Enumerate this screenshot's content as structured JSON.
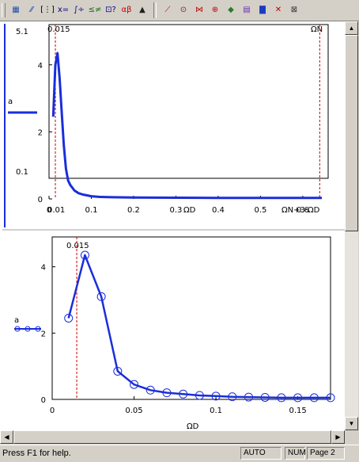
{
  "toolbar": {
    "buttons": [
      {
        "name": "calculator-toolbar-icon",
        "glyph": "▦",
        "color": "#1f4f9e"
      },
      {
        "name": "graph-toolbar-icon",
        "glyph": "⁄⁄",
        "color": "#1a3bbf"
      },
      {
        "name": "matrix-toolbar-icon",
        "glyph": "[⋮]",
        "color": "#000000"
      },
      {
        "name": "evaluation-toolbar-icon",
        "glyph": "x=",
        "color": "#000080"
      },
      {
        "name": "calculus-toolbar-icon",
        "glyph": "∫÷",
        "color": "#000080"
      },
      {
        "name": "boolean-toolbar-icon",
        "glyph": "≤≠",
        "color": "#1a6e1a"
      },
      {
        "name": "programming-toolbar-icon",
        "glyph": "⊡?",
        "color": "#000080"
      },
      {
        "name": "greek-toolbar-icon",
        "glyph": "αβ",
        "color": "#c00000"
      },
      {
        "name": "symbolic-toolbar-icon",
        "glyph": "▲",
        "color": "#202020"
      },
      {
        "name": "xy-plot-icon",
        "glyph": "⟋",
        "color": "#c00000"
      },
      {
        "name": "polar-plot-icon",
        "glyph": "⊙",
        "color": "#c00000"
      },
      {
        "name": "surface-plot-icon",
        "glyph": "⋈",
        "color": "#c00000"
      },
      {
        "name": "contour-plot-icon",
        "glyph": "⊕",
        "color": "#c00000"
      },
      {
        "name": "3d-scatter-plot-icon",
        "glyph": "◆",
        "color": "#2a7a2a"
      },
      {
        "name": "3d-bar-plot-icon",
        "glyph": "▤",
        "color": "#6a2ab0"
      },
      {
        "name": "bar-chart-icon",
        "glyph": "▇",
        "color": "#1a3bbf"
      },
      {
        "name": "vector-field-plot-icon",
        "glyph": "✕",
        "color": "#c00000"
      },
      {
        "name": "zoom-plot-icon",
        "glyph": "⊠",
        "color": "#303030"
      }
    ]
  },
  "plot1": {
    "marker_label": "0.015",
    "end_marker_label": "ΩN",
    "x_min_label": "0.01",
    "x_axis_label": "ΩD",
    "x_max_label": "ΩN+3·ΩD",
    "y_top_label": "5.1",
    "y_bottom_label": "0.1",
    "left_label": "a",
    "x_ticks": [
      "0",
      "0.1",
      "0.2",
      "0.3",
      "0.4",
      "0.5",
      "0.6"
    ],
    "y_ticks": [
      "0",
      "2",
      "4"
    ],
    "x_range": [
      0,
      0.66
    ],
    "y_range": [
      0,
      5.2
    ],
    "series": [
      [
        0.01,
        2.45
      ],
      [
        0.015,
        4.0
      ],
      [
        0.02,
        4.35
      ],
      [
        0.025,
        3.6
      ],
      [
        0.03,
        2.6
      ],
      [
        0.035,
        1.6
      ],
      [
        0.04,
        0.9
      ],
      [
        0.045,
        0.55
      ],
      [
        0.05,
        0.42
      ],
      [
        0.06,
        0.25
      ],
      [
        0.07,
        0.17
      ],
      [
        0.08,
        0.13
      ],
      [
        0.1,
        0.08
      ],
      [
        0.12,
        0.06
      ],
      [
        0.15,
        0.05
      ],
      [
        0.2,
        0.04
      ],
      [
        0.3,
        0.035
      ],
      [
        0.4,
        0.03
      ],
      [
        0.5,
        0.03
      ],
      [
        0.645,
        0.03
      ]
    ],
    "marker_x": 0.015,
    "end_marker_x": 0.64,
    "line_color": "#1a2edb",
    "marker_color": "#cc0000"
  },
  "plot2": {
    "marker_label": "0.015",
    "x_axis_label": "ΩD",
    "left_label": "a",
    "x_ticks": [
      "0",
      "0.05",
      "0.1",
      "0.15"
    ],
    "y_ticks": [
      "0",
      "2",
      "4"
    ],
    "x_range": [
      0,
      0.17
    ],
    "y_range": [
      0,
      4.9
    ],
    "series": [
      [
        0.01,
        2.45
      ],
      [
        0.02,
        4.35
      ],
      [
        0.03,
        3.1
      ],
      [
        0.04,
        0.85
      ],
      [
        0.05,
        0.45
      ],
      [
        0.06,
        0.28
      ],
      [
        0.07,
        0.2
      ],
      [
        0.08,
        0.16
      ],
      [
        0.09,
        0.12
      ],
      [
        0.1,
        0.1
      ],
      [
        0.11,
        0.08
      ],
      [
        0.12,
        0.07
      ],
      [
        0.13,
        0.06
      ],
      [
        0.14,
        0.05
      ],
      [
        0.15,
        0.05
      ],
      [
        0.16,
        0.05
      ],
      [
        0.17,
        0.05
      ]
    ],
    "marker_x": 0.015,
    "line_color": "#1a2edb",
    "marker_color": "#cc0000"
  },
  "status": {
    "help_text": "Press F1 for help.",
    "mode": "AUTO",
    "num": "NUM",
    "page": "Page 2"
  }
}
